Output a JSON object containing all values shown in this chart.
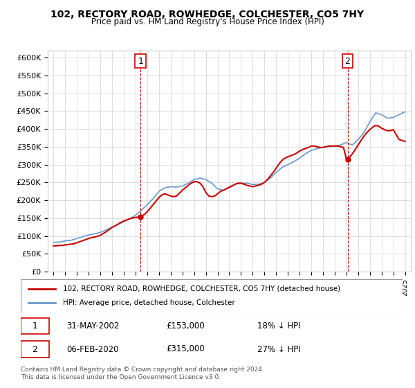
{
  "title": "102, RECTORY ROAD, ROWHEDGE, COLCHESTER, CO5 7HY",
  "subtitle": "Price paid vs. HM Land Registry's House Price Index (HPI)",
  "legend_line1": "102, RECTORY ROAD, ROWHEDGE, COLCHESTER, CO5 7HY (detached house)",
  "legend_line2": "HPI: Average price, detached house, Colchester",
  "marker1_label": "1",
  "marker1_date": "31-MAY-2002",
  "marker1_price": "£153,000",
  "marker1_hpi": "18% ↓ HPI",
  "marker1_year": 2002.42,
  "marker1_value": 153000,
  "marker2_label": "2",
  "marker2_date": "06-FEB-2020",
  "marker2_price": "£315,000",
  "marker2_hpi": "27% ↓ HPI",
  "marker2_year": 2020.1,
  "marker2_value": 315000,
  "footnote1": "Contains HM Land Registry data © Crown copyright and database right 2024.",
  "footnote2": "This data is licensed under the Open Government Licence v3.0.",
  "ylim": [
    0,
    620000
  ],
  "yticks": [
    0,
    50000,
    100000,
    150000,
    200000,
    250000,
    300000,
    350000,
    400000,
    450000,
    500000,
    550000,
    600000
  ],
  "ytick_labels": [
    "£0",
    "£50K",
    "£100K",
    "£150K",
    "£200K",
    "£250K",
    "£300K",
    "£350K",
    "£400K",
    "£450K",
    "£500K",
    "£550K",
    "£600K"
  ],
  "xlim": [
    1994.5,
    2025.5
  ],
  "hpi_color": "#6699cc",
  "price_color": "#cc0000",
  "marker_box_color": "#cc0000",
  "background_color": "#ffffff",
  "grid_color": "#dddddd",
  "hpi_data": {
    "years": [
      1995.0,
      1995.5,
      1996.0,
      1996.5,
      1997.0,
      1997.5,
      1998.0,
      1998.5,
      1999.0,
      1999.5,
      2000.0,
      2000.5,
      2001.0,
      2001.5,
      2002.0,
      2002.5,
      2003.0,
      2003.5,
      2004.0,
      2004.5,
      2005.0,
      2005.5,
      2006.0,
      2006.5,
      2007.0,
      2007.5,
      2008.0,
      2008.5,
      2009.0,
      2009.5,
      2010.0,
      2010.5,
      2011.0,
      2011.5,
      2012.0,
      2012.5,
      2013.0,
      2013.5,
      2014.0,
      2014.5,
      2015.0,
      2015.5,
      2016.0,
      2016.5,
      2017.0,
      2017.5,
      2018.0,
      2018.5,
      2019.0,
      2019.5,
      2020.0,
      2020.5,
      2021.0,
      2021.5,
      2022.0,
      2022.5,
      2023.0,
      2023.5,
      2024.0,
      2024.5,
      2025.0
    ],
    "values": [
      82000,
      83000,
      86000,
      88000,
      93000,
      98000,
      103000,
      106000,
      110000,
      117000,
      125000,
      132000,
      140000,
      148000,
      158000,
      172000,
      188000,
      205000,
      225000,
      235000,
      238000,
      237000,
      240000,
      248000,
      258000,
      262000,
      258000,
      248000,
      232000,
      228000,
      238000,
      245000,
      248000,
      248000,
      244000,
      245000,
      250000,
      262000,
      278000,
      292000,
      300000,
      308000,
      318000,
      330000,
      340000,
      345000,
      348000,
      350000,
      352000,
      355000,
      362000,
      355000,
      370000,
      390000,
      420000,
      445000,
      440000,
      430000,
      432000,
      440000,
      448000
    ]
  },
  "price_data": {
    "years": [
      1995.0,
      1995.25,
      1995.5,
      1995.75,
      1996.0,
      1996.25,
      1996.5,
      1996.75,
      1997.0,
      1997.25,
      1997.5,
      1997.75,
      1998.0,
      1998.25,
      1998.5,
      1998.75,
      1999.0,
      1999.25,
      1999.5,
      1999.75,
      2000.0,
      2000.25,
      2000.5,
      2000.75,
      2001.0,
      2001.25,
      2001.5,
      2001.75,
      2002.0,
      2002.25,
      2002.5,
      2002.75,
      2003.0,
      2003.25,
      2003.5,
      2003.75,
      2004.0,
      2004.25,
      2004.5,
      2004.75,
      2005.0,
      2005.25,
      2005.5,
      2005.75,
      2006.0,
      2006.25,
      2006.5,
      2006.75,
      2007.0,
      2007.25,
      2007.5,
      2007.75,
      2008.0,
      2008.25,
      2008.5,
      2008.75,
      2009.0,
      2009.25,
      2009.5,
      2009.75,
      2010.0,
      2010.25,
      2010.5,
      2010.75,
      2011.0,
      2011.25,
      2011.5,
      2011.75,
      2012.0,
      2012.25,
      2012.5,
      2012.75,
      2013.0,
      2013.25,
      2013.5,
      2013.75,
      2014.0,
      2014.25,
      2014.5,
      2014.75,
      2015.0,
      2015.25,
      2015.5,
      2015.75,
      2016.0,
      2016.25,
      2016.5,
      2016.75,
      2017.0,
      2017.25,
      2017.5,
      2017.75,
      2018.0,
      2018.25,
      2018.5,
      2018.75,
      2019.0,
      2019.25,
      2019.5,
      2019.75,
      2020.0,
      2020.25,
      2020.5,
      2020.75,
      2021.0,
      2021.25,
      2021.5,
      2021.75,
      2022.0,
      2022.25,
      2022.5,
      2022.75,
      2023.0,
      2023.25,
      2023.5,
      2023.75,
      2024.0,
      2024.5,
      2025.0
    ],
    "values": [
      72000,
      72500,
      73000,
      73500,
      75000,
      76000,
      77000,
      78000,
      81000,
      84000,
      87000,
      90000,
      93000,
      95000,
      97000,
      99000,
      102000,
      107000,
      112000,
      118000,
      124000,
      128000,
      133000,
      138000,
      142000,
      145000,
      148000,
      150000,
      152000,
      153000,
      155000,
      160000,
      168000,
      178000,
      188000,
      198000,
      208000,
      215000,
      218000,
      215000,
      212000,
      210000,
      212000,
      220000,
      228000,
      235000,
      242000,
      248000,
      252000,
      252000,
      248000,
      238000,
      222000,
      212000,
      210000,
      212000,
      218000,
      225000,
      228000,
      232000,
      236000,
      240000,
      245000,
      248000,
      248000,
      245000,
      242000,
      240000,
      238000,
      240000,
      242000,
      245000,
      250000,
      258000,
      268000,
      278000,
      290000,
      302000,
      312000,
      318000,
      322000,
      325000,
      328000,
      332000,
      338000,
      342000,
      345000,
      348000,
      352000,
      352000,
      350000,
      348000,
      348000,
      350000,
      352000,
      352000,
      352000,
      352000,
      350000,
      348000,
      315000,
      320000,
      330000,
      342000,
      355000,
      368000,
      380000,
      390000,
      398000,
      405000,
      410000,
      408000,
      402000,
      398000,
      395000,
      395000,
      398000,
      370000,
      365000
    ]
  }
}
